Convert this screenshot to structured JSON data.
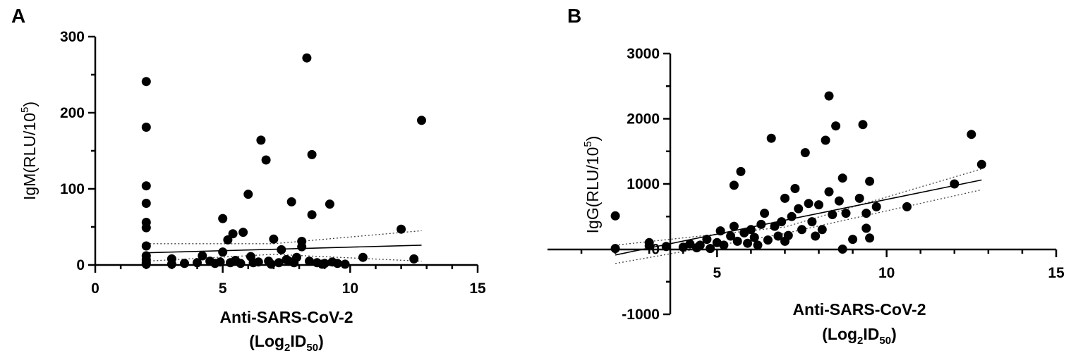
{
  "chart_data": [
    {
      "panel": "A",
      "type": "scatter",
      "xlabel_line1": "Anti-SARS-CoV-2",
      "xlabel_line2": {
        "pre": "(Log",
        "sub": "2",
        "mid": "ID",
        "sub2": "50",
        "post": ")"
      },
      "ylabel": {
        "pre": "IgM(RLU/10",
        "sup": "5",
        "post": ")"
      },
      "xlim": [
        0,
        15
      ],
      "ylim": [
        0,
        300
      ],
      "xticks": [
        0,
        5,
        10,
        15
      ],
      "yticks": [
        0,
        100,
        200,
        300
      ],
      "fit_line": [
        [
          2,
          16
        ],
        [
          12.8,
          26
        ]
      ],
      "ci_upper": [
        [
          2,
          28
        ],
        [
          7,
          28
        ],
        [
          12.8,
          45
        ]
      ],
      "ci_lower": [
        [
          2,
          5
        ],
        [
          7,
          14
        ],
        [
          12.8,
          5
        ]
      ],
      "points": [
        [
          2,
          241
        ],
        [
          2,
          181
        ],
        [
          2,
          104
        ],
        [
          2,
          81
        ],
        [
          2,
          56
        ],
        [
          2,
          49
        ],
        [
          2,
          25
        ],
        [
          2,
          12
        ],
        [
          2,
          7
        ],
        [
          2,
          3
        ],
        [
          2,
          1
        ],
        [
          3,
          8
        ],
        [
          3,
          1
        ],
        [
          3.5,
          2
        ],
        [
          4,
          3
        ],
        [
          4.2,
          12
        ],
        [
          4.5,
          5
        ],
        [
          4.7,
          2
        ],
        [
          5,
          61
        ],
        [
          5,
          17
        ],
        [
          5.2,
          33
        ],
        [
          5.4,
          41
        ],
        [
          5.5,
          6
        ],
        [
          5.8,
          43
        ],
        [
          5.3,
          3
        ],
        [
          5.7,
          2
        ],
        [
          6,
          93
        ],
        [
          6.1,
          11
        ],
        [
          6.2,
          3
        ],
        [
          6.5,
          164
        ],
        [
          6.7,
          138
        ],
        [
          6.8,
          5
        ],
        [
          7,
          34
        ],
        [
          7.3,
          20
        ],
        [
          7.2,
          3
        ],
        [
          7.5,
          7
        ],
        [
          7.7,
          83
        ],
        [
          7.9,
          10
        ],
        [
          7.8,
          3
        ],
        [
          8.1,
          31
        ],
        [
          8.1,
          24
        ],
        [
          8.3,
          272
        ],
        [
          8.5,
          145
        ],
        [
          8.5,
          66
        ],
        [
          8.4,
          5
        ],
        [
          8.7,
          3
        ],
        [
          9,
          2
        ],
        [
          9.2,
          80
        ],
        [
          9.3,
          4
        ],
        [
          9.5,
          2
        ],
        [
          9.8,
          1
        ],
        [
          10.5,
          10
        ],
        [
          12,
          47
        ],
        [
          12.5,
          8
        ],
        [
          12.8,
          190
        ],
        [
          6.4,
          4
        ],
        [
          6.9,
          1
        ],
        [
          4.9,
          4
        ],
        [
          7.6,
          5
        ],
        [
          8.9,
          1
        ]
      ]
    },
    {
      "panel": "B",
      "type": "scatter",
      "xlabel_line1": "Anti-SARS-CoV-2",
      "xlabel_line2": {
        "pre": "(Log",
        "sub": "2",
        "mid": "ID",
        "sub2": "50",
        "post": ")"
      },
      "ylabel": {
        "pre": "IgG(RLU/10",
        "sup": "5",
        "post": ")"
      },
      "xlim": [
        0,
        15
      ],
      "ylim": [
        -1000,
        3000
      ],
      "xticks": [
        5,
        10,
        15
      ],
      "yticks": [
        -1000,
        0,
        1000,
        2000,
        3000
      ],
      "fit_line": [
        [
          2,
          -90
        ],
        [
          12.8,
          1060
        ]
      ],
      "ci_upper": [
        [
          2,
          60
        ],
        [
          7,
          340
        ],
        [
          12.8,
          1230
        ]
      ],
      "ci_lower": [
        [
          2,
          -220
        ],
        [
          7,
          240
        ],
        [
          12.8,
          910
        ]
      ],
      "points": [
        [
          2,
          510
        ],
        [
          2,
          10
        ],
        [
          3,
          100
        ],
        [
          3,
          50
        ],
        [
          3.5,
          40
        ],
        [
          4,
          30
        ],
        [
          4.2,
          80
        ],
        [
          4.5,
          60
        ],
        [
          4.7,
          150
        ],
        [
          4.8,
          10
        ],
        [
          5,
          100
        ],
        [
          5.2,
          60
        ],
        [
          5.4,
          200
        ],
        [
          5.5,
          980
        ],
        [
          5.5,
          350
        ],
        [
          5.6,
          120
        ],
        [
          5.7,
          1190
        ],
        [
          5.8,
          250
        ],
        [
          6,
          300
        ],
        [
          6.1,
          180
        ],
        [
          6.2,
          60
        ],
        [
          6.3,
          380
        ],
        [
          6.4,
          550
        ],
        [
          6.5,
          140
        ],
        [
          6.6,
          1700
        ],
        [
          6.7,
          350
        ],
        [
          6.8,
          200
        ],
        [
          7,
          780
        ],
        [
          7,
          120
        ],
        [
          7.2,
          500
        ],
        [
          7.3,
          930
        ],
        [
          7.4,
          620
        ],
        [
          7.5,
          300
        ],
        [
          7.6,
          1480
        ],
        [
          7.7,
          700
        ],
        [
          7.8,
          420
        ],
        [
          7.9,
          200
        ],
        [
          8,
          680
        ],
        [
          8.1,
          300
        ],
        [
          8.2,
          1670
        ],
        [
          8.3,
          2350
        ],
        [
          8.3,
          880
        ],
        [
          8.4,
          530
        ],
        [
          8.5,
          1890
        ],
        [
          8.6,
          740
        ],
        [
          8.7,
          1090
        ],
        [
          8.7,
          0
        ],
        [
          8.8,
          550
        ],
        [
          9,
          150
        ],
        [
          9.2,
          780
        ],
        [
          9.3,
          1910
        ],
        [
          9.4,
          550
        ],
        [
          9.4,
          320
        ],
        [
          9.5,
          1040
        ],
        [
          9.5,
          170
        ],
        [
          9.7,
          650
        ],
        [
          10.6,
          650
        ],
        [
          12,
          1000
        ],
        [
          12.5,
          1760
        ],
        [
          12.8,
          1300
        ],
        [
          6.9,
          420
        ],
        [
          7.1,
          210
        ],
        [
          5.9,
          90
        ],
        [
          4.4,
          20
        ],
        [
          5.1,
          280
        ]
      ]
    }
  ]
}
